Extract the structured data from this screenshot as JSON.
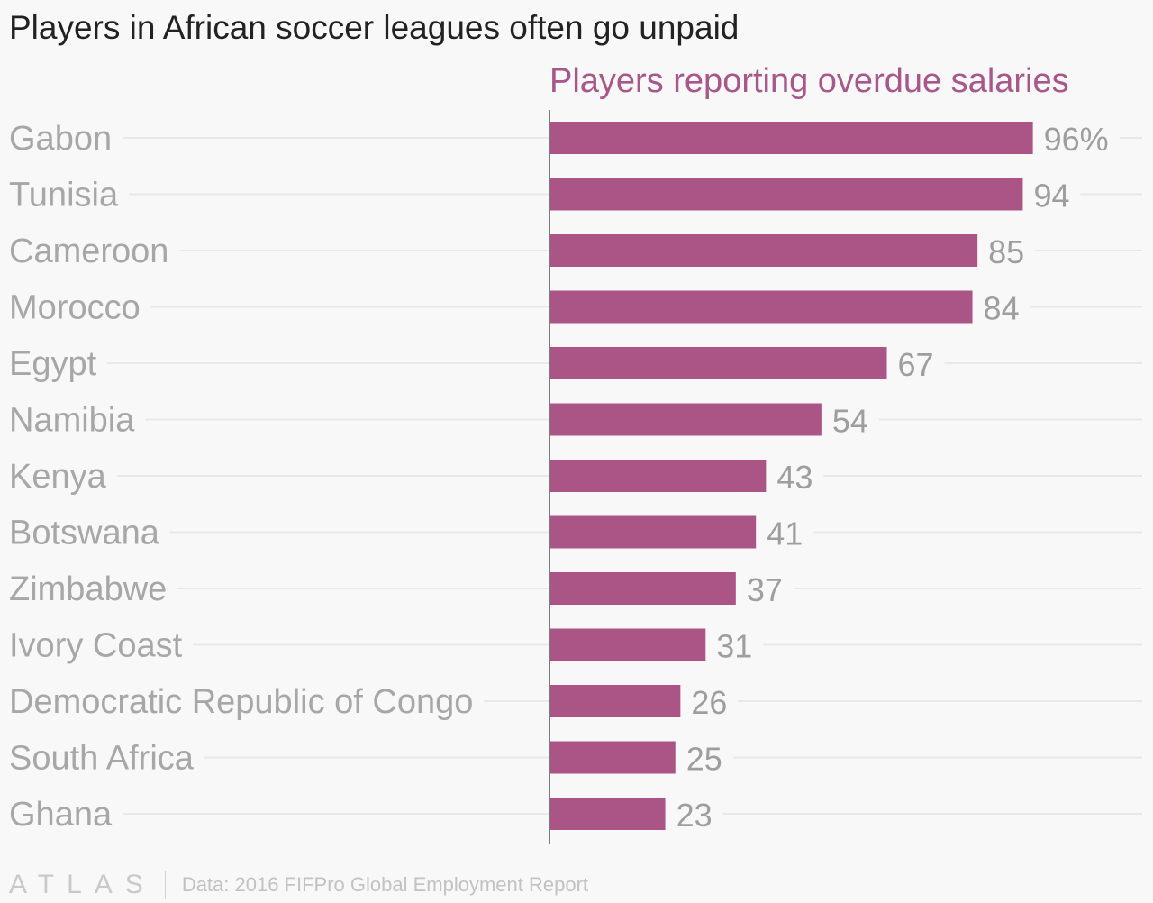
{
  "chart_data": {
    "type": "bar",
    "orientation": "horizontal",
    "title": "Players in African soccer leagues often go unpaid",
    "subtitle": "Players reporting overdue salaries",
    "categories": [
      "Gabon",
      "Tunisia",
      "Cameroon",
      "Morocco",
      "Egypt",
      "Namibia",
      "Kenya",
      "Botswana",
      "Zimbabwe",
      "Ivory Coast",
      "Democratic Republic of Congo",
      "South Africa",
      "Ghana"
    ],
    "values": [
      96,
      94,
      85,
      84,
      67,
      54,
      43,
      41,
      37,
      31,
      26,
      25,
      23
    ],
    "value_labels": [
      "96%",
      "94",
      "85",
      "84",
      "67",
      "54",
      "43",
      "41",
      "37",
      "31",
      "26",
      "25",
      "23"
    ],
    "unit": "%",
    "xlim": [
      0,
      100
    ],
    "grid": true,
    "colors": {
      "bar": "#aa5586",
      "subtitle": "#a8578a",
      "category_label": "#a7a7a7",
      "value_label": "#9e9e9e",
      "gridline": "#e8e8e8",
      "axis": "#7c7c7c"
    }
  },
  "footer": {
    "logo": "ATLAS",
    "source": "Data: 2016 FIFPro Global Employment Report"
  }
}
